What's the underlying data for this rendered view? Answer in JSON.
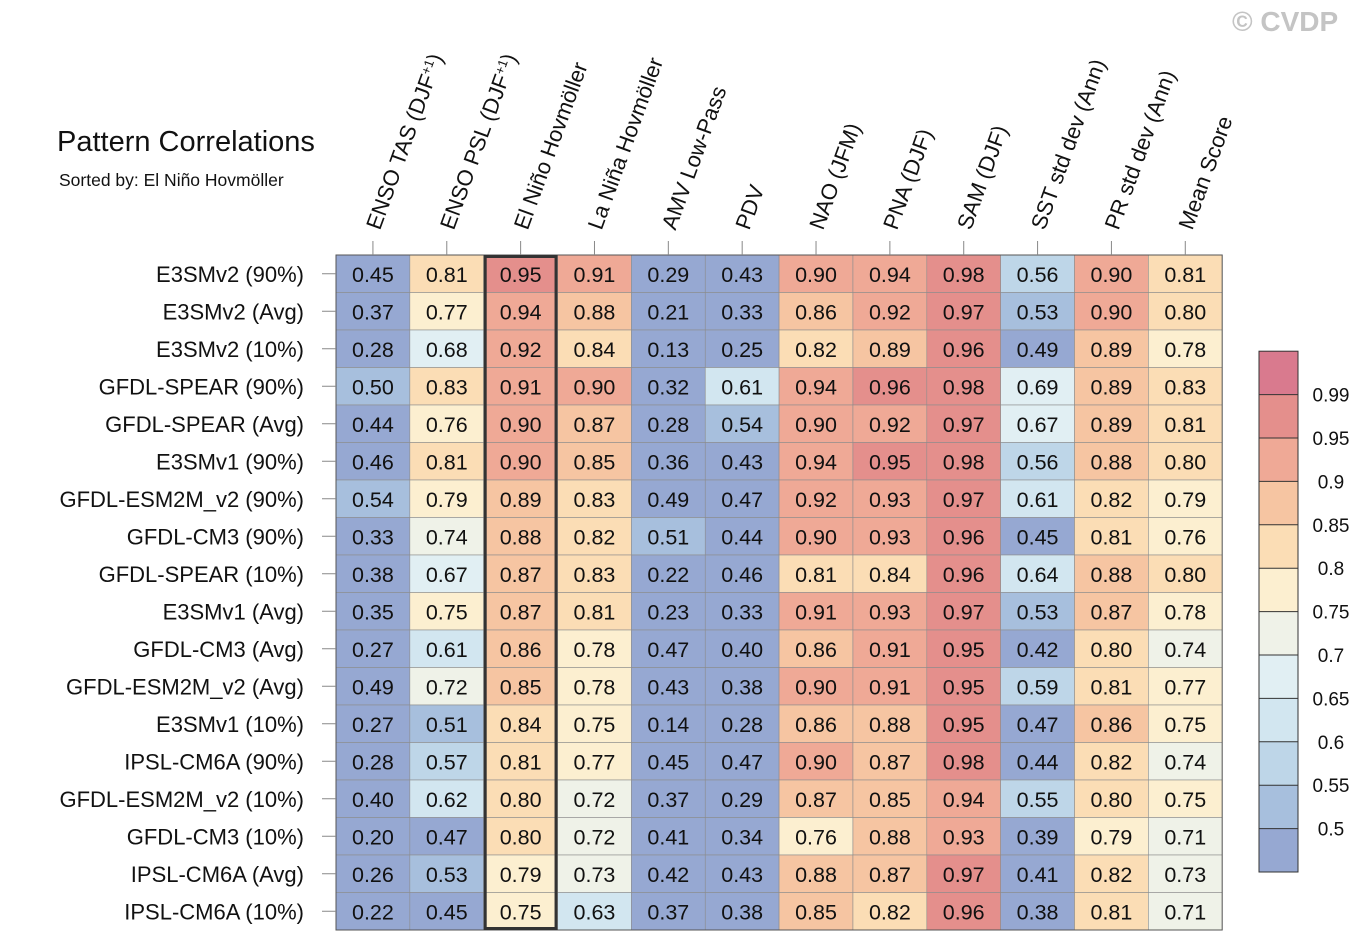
{
  "title": "Pattern Correlations",
  "subtitle": "Sorted by: El Niño Hovmöller",
  "watermark": "© CVDP",
  "chart_data": {
    "type": "heatmap",
    "columns": [
      "ENSO TAS (DJF+1)",
      "ENSO PSL (DJF+1)",
      "El Niño Hovmöller",
      "La Niña Hovmöller",
      "AMV Low-Pass",
      "PDV",
      "NAO (JFM)",
      "PNA (DJF)",
      "SAM (DJF)",
      "SST std dev (Ann)",
      "PR std dev (Ann)",
      "Mean Score"
    ],
    "highlighted_column": "El Niño Hovmöller",
    "rows": [
      "E3SMv2 (90%)",
      "E3SMv2 (Avg)",
      "E3SMv2 (10%)",
      "GFDL-SPEAR (90%)",
      "GFDL-SPEAR (Avg)",
      "E3SMv1 (90%)",
      "GFDL-ESM2M_v2 (90%)",
      "GFDL-CM3 (90%)",
      "GFDL-SPEAR (10%)",
      "E3SMv1 (Avg)",
      "GFDL-CM3 (Avg)",
      "GFDL-ESM2M_v2 (Avg)",
      "E3SMv1 (10%)",
      "IPSL-CM6A (90%)",
      "GFDL-ESM2M_v2 (10%)",
      "GFDL-CM3 (10%)",
      "IPSL-CM6A (Avg)",
      "IPSL-CM6A (10%)"
    ],
    "values": [
      [
        0.45,
        0.81,
        0.95,
        0.91,
        0.29,
        0.43,
        0.9,
        0.94,
        0.98,
        0.56,
        0.9,
        0.81
      ],
      [
        0.37,
        0.77,
        0.94,
        0.88,
        0.21,
        0.33,
        0.86,
        0.92,
        0.97,
        0.53,
        0.9,
        0.8
      ],
      [
        0.28,
        0.68,
        0.92,
        0.84,
        0.13,
        0.25,
        0.82,
        0.89,
        0.96,
        0.49,
        0.89,
        0.78
      ],
      [
        0.5,
        0.83,
        0.91,
        0.9,
        0.32,
        0.61,
        0.94,
        0.96,
        0.98,
        0.69,
        0.89,
        0.83
      ],
      [
        0.44,
        0.76,
        0.9,
        0.87,
        0.28,
        0.54,
        0.9,
        0.92,
        0.97,
        0.67,
        0.89,
        0.81
      ],
      [
        0.46,
        0.81,
        0.9,
        0.85,
        0.36,
        0.43,
        0.94,
        0.95,
        0.98,
        0.56,
        0.88,
        0.8
      ],
      [
        0.54,
        0.79,
        0.89,
        0.83,
        0.49,
        0.47,
        0.92,
        0.93,
        0.97,
        0.61,
        0.82,
        0.79
      ],
      [
        0.33,
        0.74,
        0.88,
        0.82,
        0.51,
        0.44,
        0.9,
        0.93,
        0.96,
        0.45,
        0.81,
        0.76
      ],
      [
        0.38,
        0.67,
        0.87,
        0.83,
        0.22,
        0.46,
        0.81,
        0.84,
        0.96,
        0.64,
        0.88,
        0.8
      ],
      [
        0.35,
        0.75,
        0.87,
        0.81,
        0.23,
        0.33,
        0.91,
        0.93,
        0.97,
        0.53,
        0.87,
        0.78
      ],
      [
        0.27,
        0.61,
        0.86,
        0.78,
        0.47,
        0.4,
        0.86,
        0.91,
        0.95,
        0.42,
        0.8,
        0.74
      ],
      [
        0.49,
        0.72,
        0.85,
        0.78,
        0.43,
        0.38,
        0.9,
        0.91,
        0.95,
        0.59,
        0.81,
        0.77
      ],
      [
        0.27,
        0.51,
        0.84,
        0.75,
        0.14,
        0.28,
        0.86,
        0.88,
        0.95,
        0.47,
        0.86,
        0.75
      ],
      [
        0.28,
        0.57,
        0.81,
        0.77,
        0.45,
        0.47,
        0.9,
        0.87,
        0.98,
        0.44,
        0.82,
        0.74
      ],
      [
        0.4,
        0.62,
        0.8,
        0.72,
        0.37,
        0.29,
        0.87,
        0.85,
        0.94,
        0.55,
        0.8,
        0.75
      ],
      [
        0.2,
        0.47,
        0.8,
        0.72,
        0.41,
        0.34,
        0.76,
        0.88,
        0.93,
        0.39,
        0.79,
        0.71
      ],
      [
        0.26,
        0.53,
        0.79,
        0.73,
        0.42,
        0.43,
        0.88,
        0.87,
        0.97,
        0.41,
        0.82,
        0.73
      ],
      [
        0.22,
        0.45,
        0.75,
        0.63,
        0.37,
        0.38,
        0.85,
        0.82,
        0.96,
        0.38,
        0.81,
        0.71
      ]
    ],
    "colorbar": {
      "boundaries": [
        0.5,
        0.55,
        0.6,
        0.65,
        0.7,
        0.75,
        0.8,
        0.85,
        0.9,
        0.95,
        0.99
      ],
      "labels": [
        "0.5",
        "0.55",
        "0.6",
        "0.65",
        "0.7",
        "0.75",
        "0.8",
        "0.85",
        "0.9",
        "0.95",
        "0.99"
      ],
      "colors": [
        "#96a8d2",
        "#a7bfdd",
        "#bed6e8",
        "#d2e6f0",
        "#e1eff3",
        "#eff2e8",
        "#fcefd0",
        "#fbddb5",
        "#f6c5a2",
        "#efa996",
        "#e48f8c",
        "#d97a8e"
      ]
    }
  }
}
